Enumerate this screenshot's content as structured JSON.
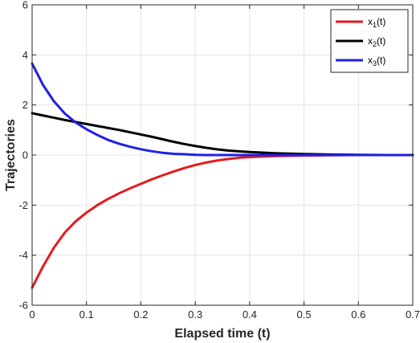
{
  "chart_data": {
    "type": "line",
    "title": "",
    "xlabel": "Elapsed time (t)",
    "ylabel": "Trajectories",
    "xlim": [
      0,
      0.7
    ],
    "ylim": [
      -6,
      6
    ],
    "xticks": [
      0,
      0.1,
      0.2,
      0.3,
      0.4,
      0.5,
      0.6,
      0.7
    ],
    "yticks": [
      -6,
      -4,
      -2,
      0,
      2,
      4,
      6
    ],
    "xtick_labels": [
      "0",
      "0.1",
      "0.2",
      "0.3",
      "0.4",
      "0.5",
      "0.6",
      "0.7"
    ],
    "ytick_labels": [
      "-6",
      "-4",
      "-2",
      "0",
      "2",
      "4",
      "6"
    ],
    "grid": true,
    "legend_position": "top-right",
    "x": [
      0,
      0.02,
      0.04,
      0.06,
      0.08,
      0.1,
      0.12,
      0.14,
      0.16,
      0.18,
      0.2,
      0.22,
      0.24,
      0.26,
      0.28,
      0.3,
      0.32,
      0.34,
      0.36,
      0.38,
      0.4,
      0.45,
      0.5,
      0.55,
      0.6,
      0.65,
      0.7
    ],
    "series": [
      {
        "name": "x",
        "subscript": "1",
        "suffix": "(t)",
        "color": "#e41a1c",
        "values": [
          -5.3,
          -4.45,
          -3.7,
          -3.1,
          -2.65,
          -2.3,
          -2.0,
          -1.75,
          -1.53,
          -1.33,
          -1.15,
          -0.97,
          -0.81,
          -0.66,
          -0.52,
          -0.4,
          -0.3,
          -0.22,
          -0.16,
          -0.11,
          -0.08,
          -0.04,
          -0.02,
          -0.01,
          0.0,
          0.0,
          0.0
        ]
      },
      {
        "name": "x",
        "subscript": "2",
        "suffix": "(t)",
        "color": "#000000",
        "values": [
          1.67,
          1.58,
          1.49,
          1.4,
          1.32,
          1.24,
          1.16,
          1.08,
          1.0,
          0.91,
          0.82,
          0.73,
          0.63,
          0.53,
          0.44,
          0.36,
          0.29,
          0.23,
          0.18,
          0.15,
          0.12,
          0.07,
          0.04,
          0.02,
          0.01,
          0.0,
          0.0
        ]
      },
      {
        "name": "x",
        "subscript": "3",
        "suffix": "(t)",
        "color": "#1f1fe6",
        "values": [
          3.65,
          2.8,
          2.15,
          1.66,
          1.3,
          1.03,
          0.8,
          0.6,
          0.45,
          0.33,
          0.23,
          0.15,
          0.09,
          0.05,
          0.03,
          0.01,
          0.0,
          0.0,
          0.0,
          0.0,
          0.0,
          0.0,
          0.0,
          0.0,
          0.0,
          0.0,
          0.0
        ]
      }
    ]
  }
}
